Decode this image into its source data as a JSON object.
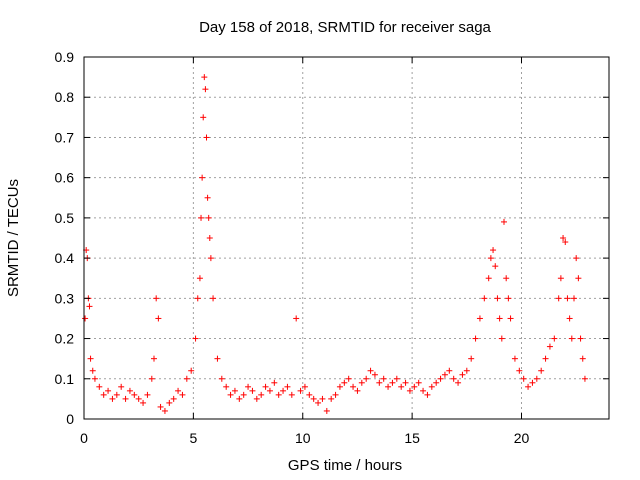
{
  "chart_data": {
    "type": "scatter",
    "title": "Day 158 of 2018, SRMTID for receiver saga",
    "xlabel": "GPS time / hours",
    "ylabel": "SRMTID / TECUs",
    "xlim": [
      0,
      24
    ],
    "ylim": [
      0,
      0.9
    ],
    "grid": true,
    "marker": "+",
    "series": [
      {
        "name": "SRMTID",
        "color": "#ff0000",
        "x": [
          0.05,
          0.1,
          0.15,
          0.2,
          0.25,
          0.3,
          0.4,
          0.5,
          0.7,
          0.9,
          1.1,
          1.3,
          1.5,
          1.7,
          1.9,
          2.1,
          2.3,
          2.5,
          2.7,
          2.9,
          3.1,
          3.2,
          3.3,
          3.4,
          3.5,
          3.7,
          3.9,
          4.1,
          4.3,
          4.5,
          4.7,
          4.9,
          5.1,
          5.2,
          5.3,
          5.35,
          5.4,
          5.45,
          5.5,
          5.55,
          5.6,
          5.65,
          5.7,
          5.75,
          5.8,
          5.9,
          6.1,
          6.3,
          6.5,
          6.7,
          6.9,
          7.1,
          7.3,
          7.5,
          7.7,
          7.9,
          8.1,
          8.3,
          8.5,
          8.7,
          8.9,
          9.1,
          9.3,
          9.5,
          9.7,
          9.9,
          10.1,
          10.3,
          10.5,
          10.7,
          10.9,
          11.1,
          11.3,
          11.5,
          11.7,
          11.9,
          12.1,
          12.3,
          12.5,
          12.7,
          12.9,
          13.1,
          13.3,
          13.5,
          13.7,
          13.9,
          14.1,
          14.3,
          14.5,
          14.7,
          14.9,
          15.1,
          15.3,
          15.5,
          15.7,
          15.9,
          16.1,
          16.3,
          16.5,
          16.7,
          16.9,
          17.1,
          17.3,
          17.5,
          17.7,
          17.9,
          18.1,
          18.3,
          18.5,
          18.6,
          18.7,
          18.8,
          18.9,
          19.0,
          19.1,
          19.2,
          19.3,
          19.4,
          19.5,
          19.7,
          19.9,
          20.1,
          20.3,
          20.5,
          20.7,
          20.9,
          21.1,
          21.3,
          21.5,
          21.7,
          21.8,
          21.9,
          22.0,
          22.1,
          22.2,
          22.3,
          22.4,
          22.5,
          22.6,
          22.7,
          22.8,
          22.9
        ],
        "y": [
          0.25,
          0.42,
          0.4,
          0.3,
          0.28,
          0.15,
          0.12,
          0.1,
          0.08,
          0.06,
          0.07,
          0.05,
          0.06,
          0.08,
          0.05,
          0.07,
          0.06,
          0.05,
          0.04,
          0.06,
          0.1,
          0.15,
          0.3,
          0.25,
          0.03,
          0.02,
          0.04,
          0.05,
          0.07,
          0.06,
          0.1,
          0.12,
          0.2,
          0.3,
          0.35,
          0.5,
          0.6,
          0.75,
          0.85,
          0.82,
          0.7,
          0.55,
          0.5,
          0.45,
          0.4,
          0.3,
          0.15,
          0.1,
          0.08,
          0.06,
          0.07,
          0.05,
          0.06,
          0.08,
          0.07,
          0.05,
          0.06,
          0.08,
          0.07,
          0.09,
          0.06,
          0.07,
          0.08,
          0.06,
          0.25,
          0.07,
          0.08,
          0.06,
          0.05,
          0.04,
          0.05,
          0.02,
          0.05,
          0.06,
          0.08,
          0.09,
          0.1,
          0.08,
          0.07,
          0.09,
          0.1,
          0.12,
          0.11,
          0.09,
          0.1,
          0.08,
          0.09,
          0.1,
          0.08,
          0.09,
          0.07,
          0.08,
          0.09,
          0.07,
          0.06,
          0.08,
          0.09,
          0.1,
          0.11,
          0.12,
          0.1,
          0.09,
          0.11,
          0.12,
          0.15,
          0.2,
          0.25,
          0.3,
          0.35,
          0.4,
          0.42,
          0.38,
          0.3,
          0.25,
          0.2,
          0.49,
          0.35,
          0.3,
          0.25,
          0.15,
          0.12,
          0.1,
          0.08,
          0.09,
          0.1,
          0.12,
          0.15,
          0.18,
          0.2,
          0.3,
          0.35,
          0.45,
          0.44,
          0.3,
          0.25,
          0.2,
          0.3,
          0.4,
          0.35,
          0.2,
          0.15,
          0.1
        ]
      }
    ]
  }
}
